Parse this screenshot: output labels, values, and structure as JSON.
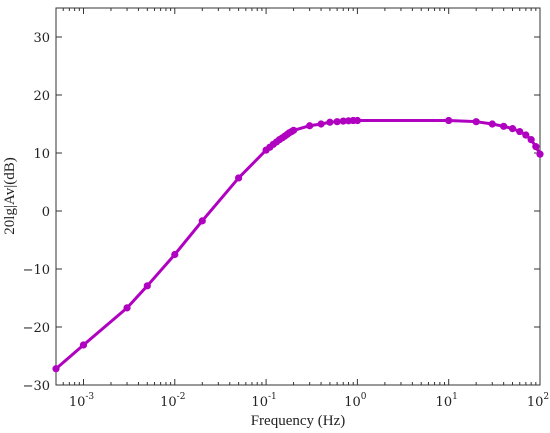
{
  "chart_data": {
    "type": "line",
    "xlabel": "Frequency (Hz)",
    "ylabel": "20lg|Av|(dB)",
    "xscale": "log",
    "xlim": [
      0.0005,
      100
    ],
    "ylim": [
      -30,
      35
    ],
    "grid": false,
    "color": "#b000c0",
    "x_ticks": [
      0.001,
      0.01,
      0.1,
      1,
      10,
      100
    ],
    "x_tick_labels": [
      {
        "base": "10",
        "exp": "-3"
      },
      {
        "base": "10",
        "exp": "-2"
      },
      {
        "base": "10",
        "exp": "-1"
      },
      {
        "base": "10",
        "exp": "0"
      },
      {
        "base": "10",
        "exp": "1"
      },
      {
        "base": "10",
        "exp": "2"
      }
    ],
    "y_ticks": [
      -30,
      -20,
      -10,
      0,
      10,
      20,
      30
    ],
    "y_tick_labels": [
      "−30",
      "−20",
      "−10",
      "0",
      "10",
      "20",
      "30"
    ],
    "series": [
      {
        "x": [
          0.0005,
          0.001,
          0.003,
          0.005,
          0.01,
          0.02,
          0.05,
          0.1,
          0.11,
          0.12,
          0.13,
          0.14,
          0.15,
          0.16,
          0.17,
          0.18,
          0.19,
          0.2,
          0.3,
          0.4,
          0.5,
          0.6,
          0.7,
          0.8,
          0.9,
          1,
          10,
          20,
          30,
          40,
          50,
          60,
          70,
          80,
          90,
          100
        ],
        "y": [
          -27.2,
          -23.1,
          -16.7,
          -12.9,
          -7.5,
          -1.7,
          5.7,
          10.5,
          11.0,
          11.5,
          11.9,
          12.3,
          12.6,
          12.9,
          13.2,
          13.5,
          13.7,
          13.9,
          14.7,
          15.0,
          15.3,
          15.4,
          15.5,
          15.55,
          15.6,
          15.6,
          15.6,
          15.4,
          15.0,
          14.6,
          14.2,
          13.7,
          13.1,
          12.3,
          11.1,
          9.8
        ]
      }
    ]
  }
}
